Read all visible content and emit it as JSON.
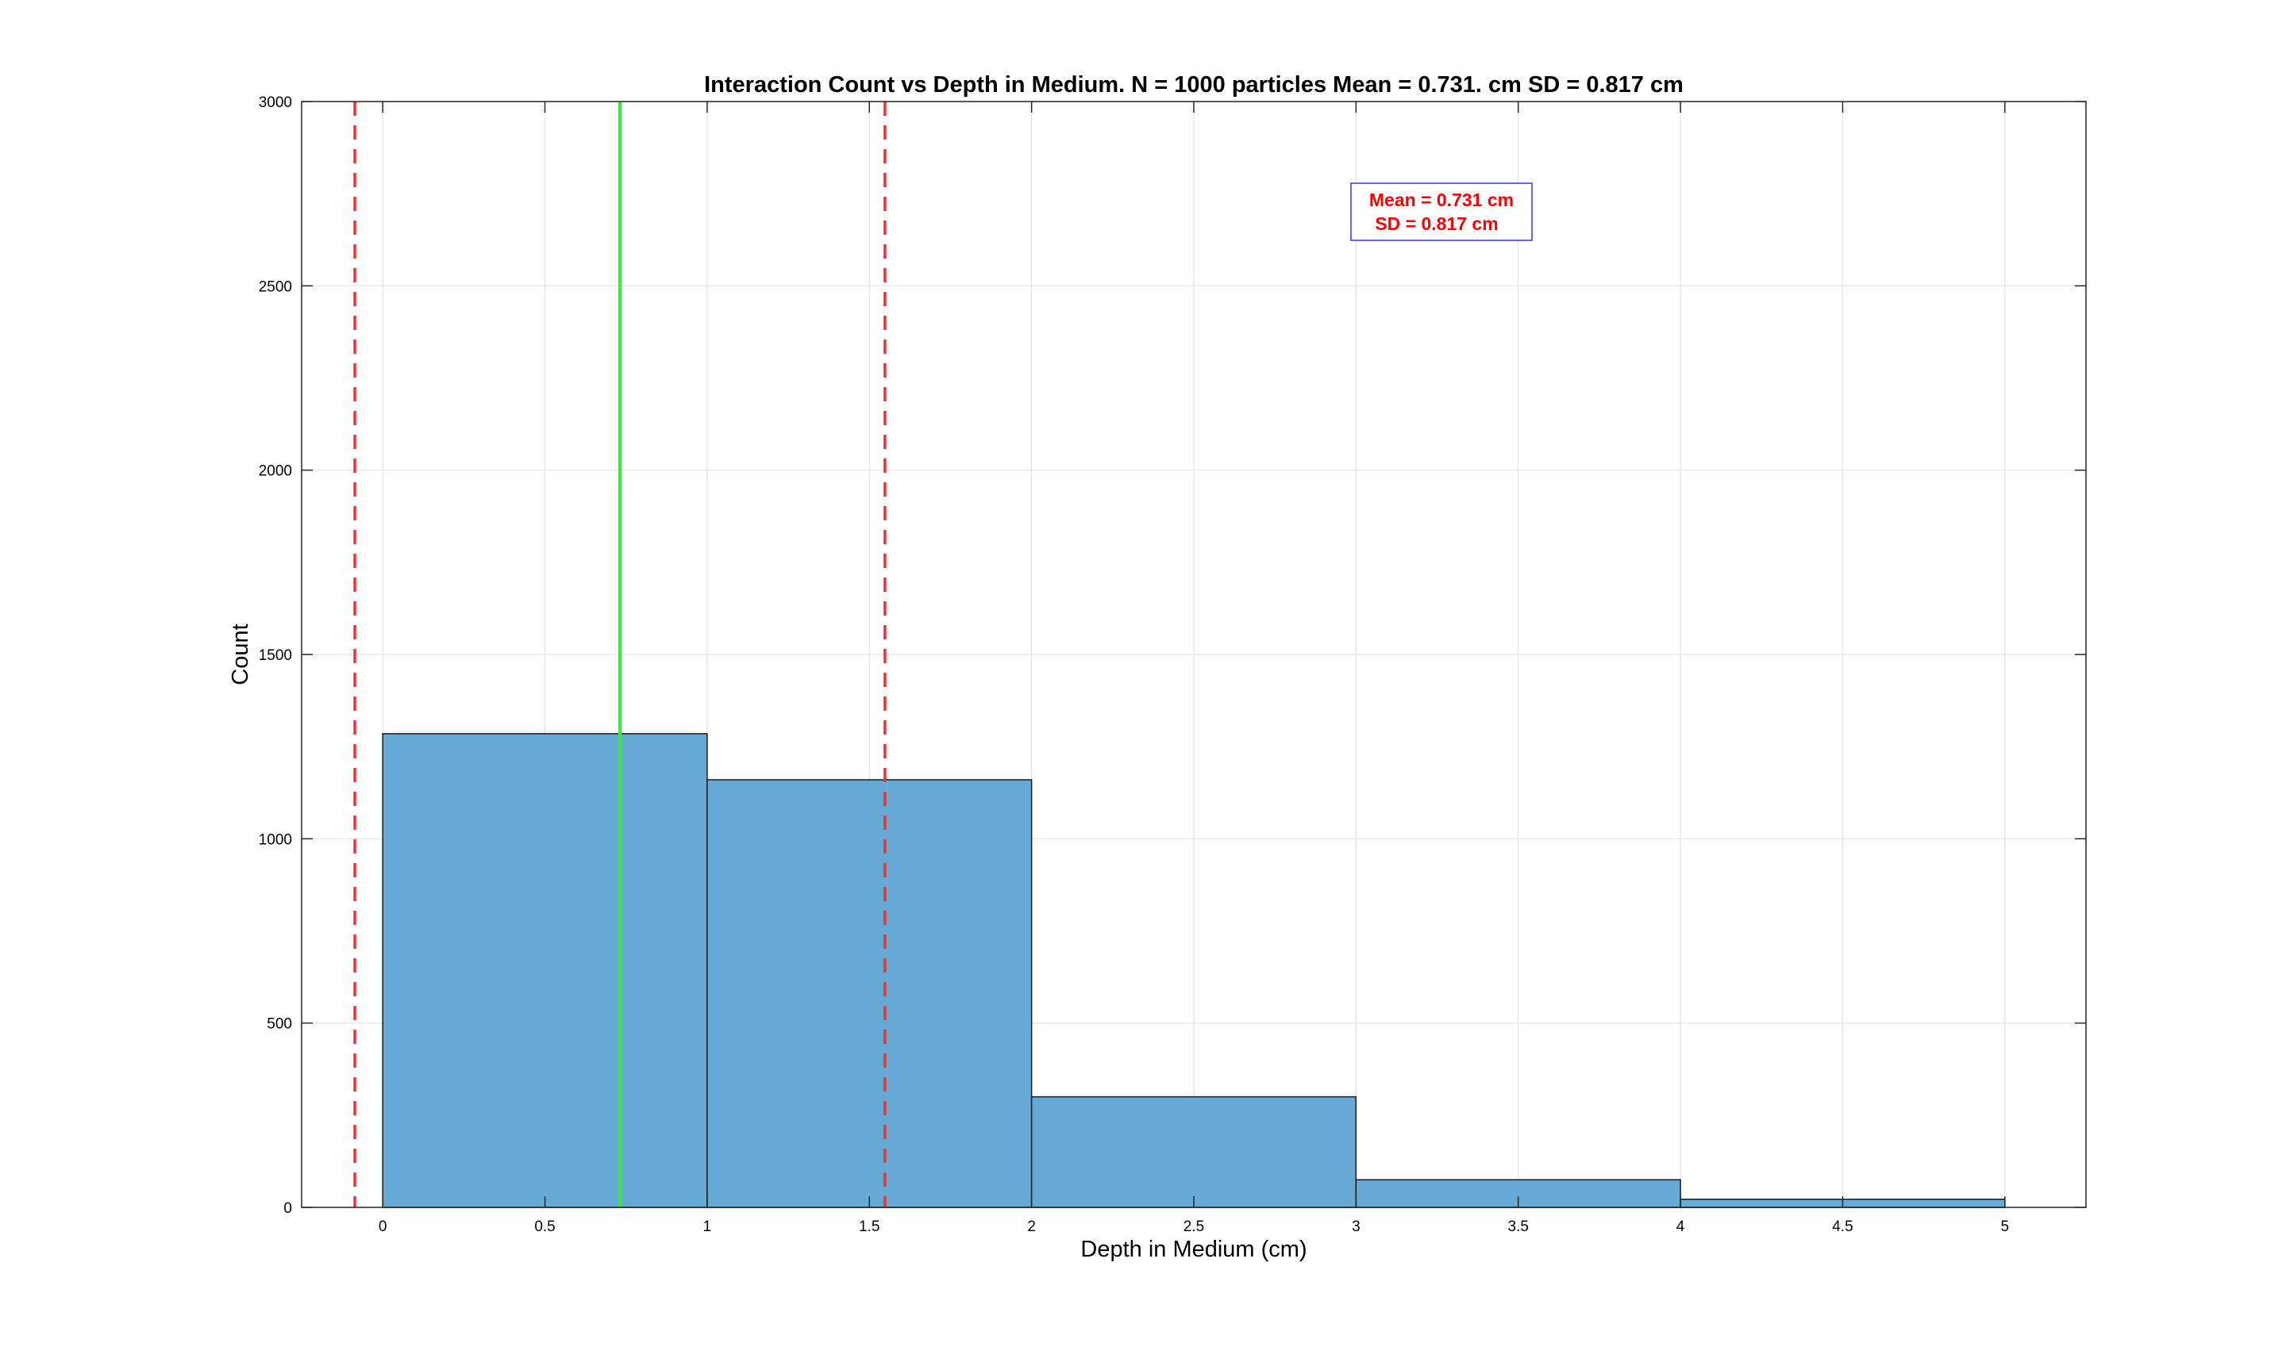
{
  "chart_data": {
    "type": "bar",
    "title": "Interaction Count vs Depth in Medium. N = 1000 particles  Mean = 0.731. cm  SD = 0.817 cm",
    "xlabel": "Depth in Medium (cm)",
    "ylabel": "Count",
    "xlim": [
      -0.25,
      5.25
    ],
    "ylim": [
      0,
      3000
    ],
    "xticks": [
      0,
      0.5,
      1,
      1.5,
      2,
      2.5,
      3,
      3.5,
      4,
      4.5,
      5
    ],
    "xtick_labels": [
      "0",
      "0.5",
      "1",
      "1.5",
      "2",
      "2.5",
      "3",
      "3.5",
      "4",
      "4.5",
      "5"
    ],
    "yticks": [
      0,
      500,
      1000,
      1500,
      2000,
      2500,
      3000
    ],
    "ytick_labels": [
      "0",
      "500",
      "1000",
      "1500",
      "2000",
      "2500",
      "3000"
    ],
    "grid": true,
    "bins": [
      {
        "x0": 0,
        "x1": 1,
        "value": 1285
      },
      {
        "x0": 1,
        "x1": 2,
        "value": 1160
      },
      {
        "x0": 2,
        "x1": 3,
        "value": 300
      },
      {
        "x0": 3,
        "x1": 4,
        "value": 75
      },
      {
        "x0": 4,
        "x1": 5,
        "value": 22
      }
    ],
    "bar_color": "#67aad6",
    "reference_lines": [
      {
        "x": 0.731,
        "style": "solid",
        "color": "#33ee33"
      },
      {
        "x": -0.086,
        "style": "dashed",
        "color": "#ee3333"
      },
      {
        "x": 1.548,
        "style": "dashed",
        "color": "#ee3333"
      }
    ],
    "annotation": {
      "lines": [
        "Mean = 0.731 cm",
        "SD = 0.817 cm"
      ],
      "color": "#ff0000",
      "border_color": "#0000ff"
    }
  }
}
